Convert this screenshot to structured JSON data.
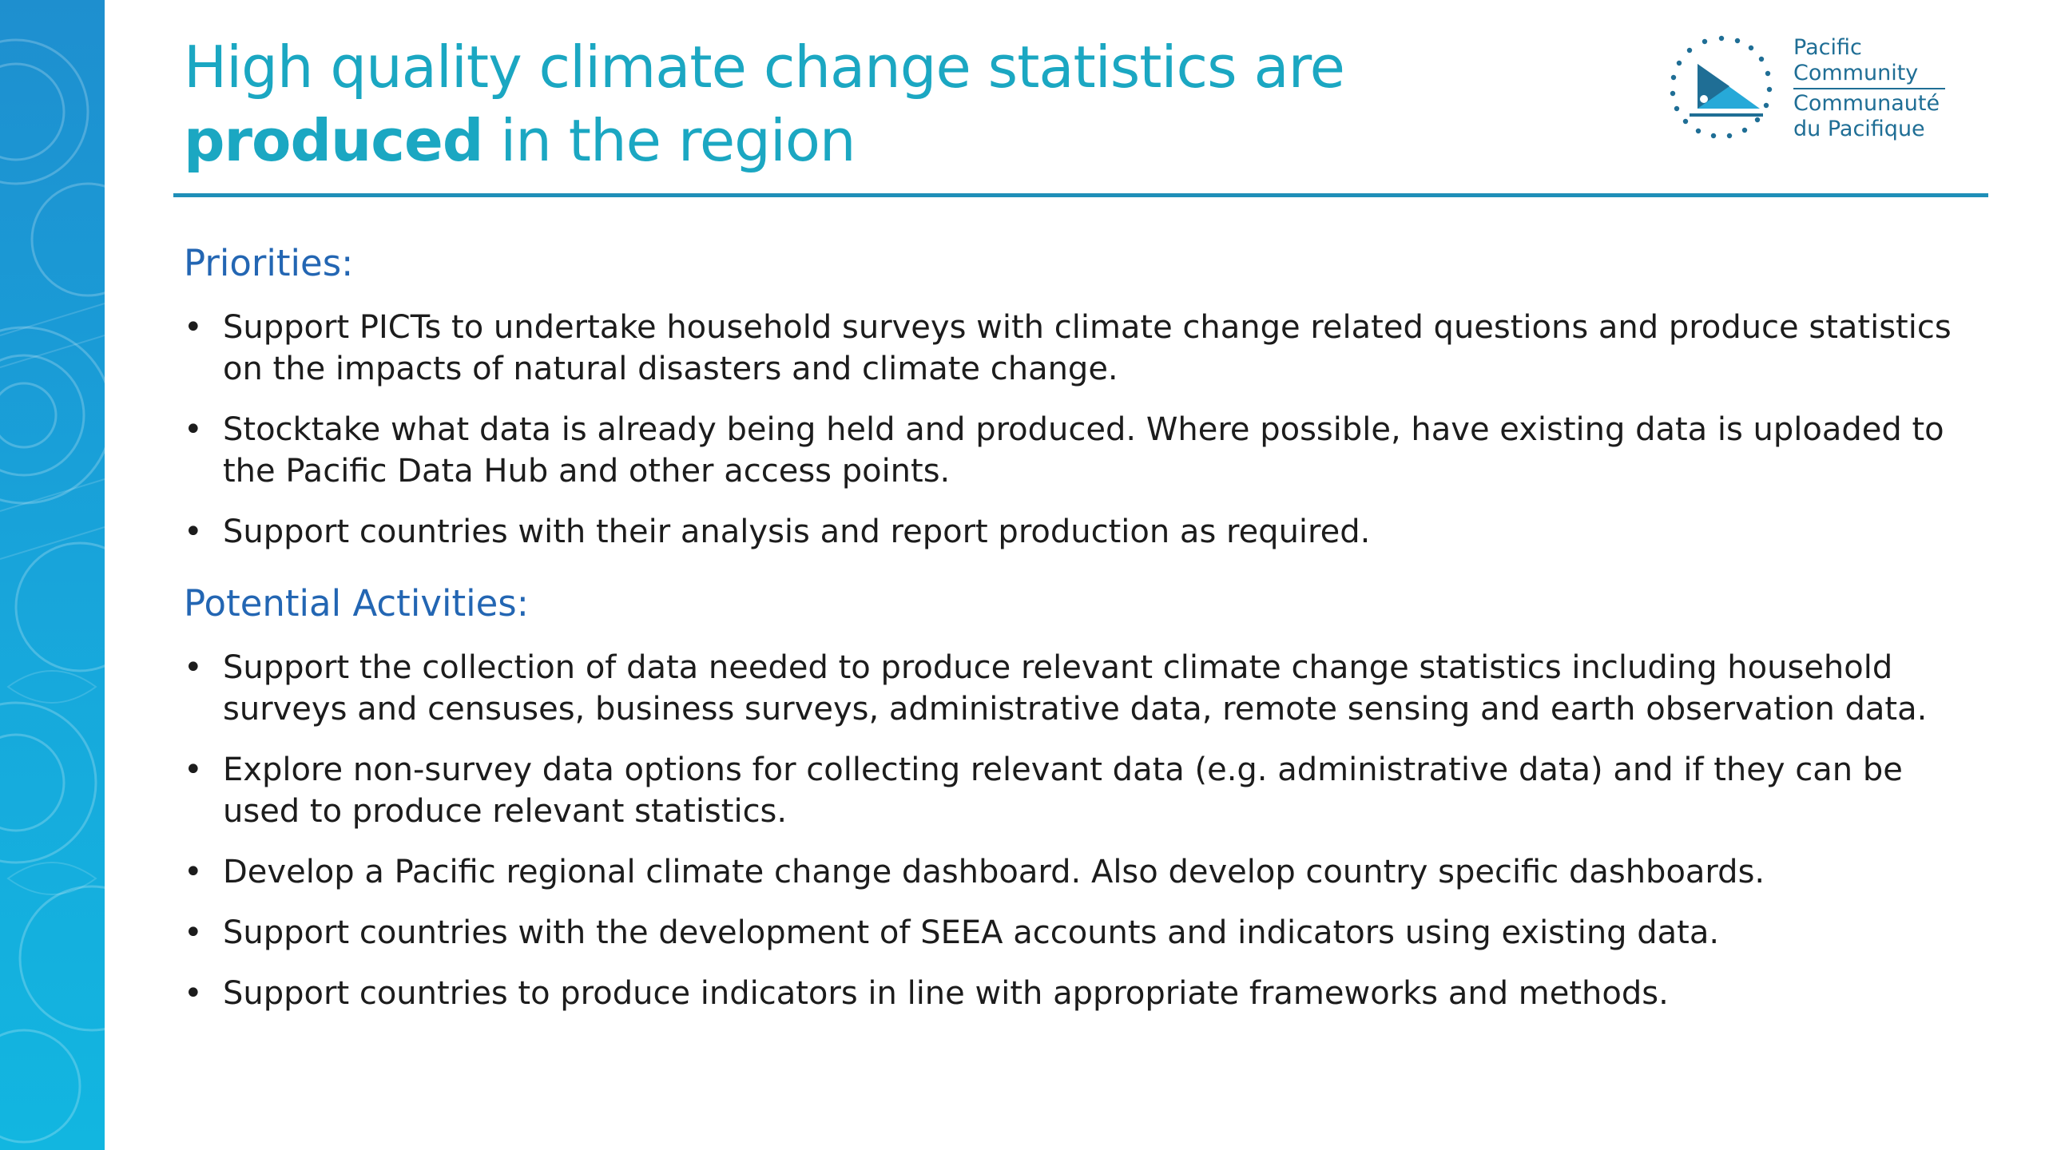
{
  "slide": {
    "title_regular": "High quality climate change statistics are ",
    "title_bold": "produced",
    "title_tail": " in the region",
    "logo": {
      "line1": "Pacific",
      "line2": "Community",
      "line3": "Communauté",
      "line4": "du Pacifique"
    }
  },
  "priorities": {
    "heading": "Priorities:",
    "items": [
      "Support PICTs to undertake household surveys with climate change related questions and produce statistics on the impacts of natural disasters and climate change.",
      "Stocktake what data is already being held and produced. Where possible, have existing data is uploaded to the Pacific Data Hub and other access points.",
      "Support countries with their analysis and report production as required."
    ]
  },
  "activities": {
    "heading": "Potential Activities:",
    "items": [
      "Support the collection of data needed to produce relevant climate change statistics including household surveys and censuses, business surveys, administrative data, remote sensing and earth observation data.",
      "Explore non-survey data options for collecting relevant data (e.g. administrative data) and if they can be used to produce relevant statistics.",
      "Develop a Pacific regional climate change dashboard. Also develop country specific dashboards.",
      "Support countries with the development of SEEA accounts and indicators using existing data.",
      "Support countries to produce indicators in line with appropriate frameworks and methods."
    ]
  },
  "colors": {
    "title": "#1ba7c2",
    "heading": "#2366b3",
    "body_text": "#1c1c1c",
    "rule": "#1f8fb8",
    "side_band": "#1a9bd6",
    "logo_text": "#1f6e95"
  },
  "icons": {
    "logo_mark": "sail-canoe-emblem-icon",
    "side_decoration": "pacific-pattern-decoration"
  }
}
